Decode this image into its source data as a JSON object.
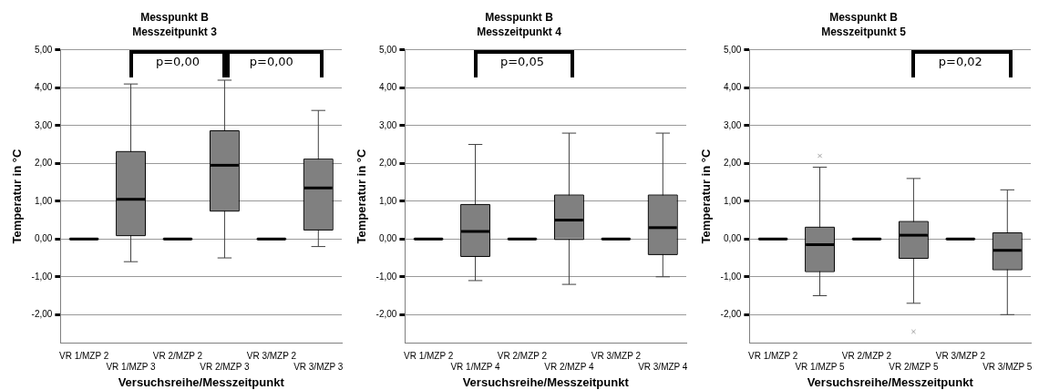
{
  "chart_data": [
    {
      "type": "box",
      "title": "Messpunkt B",
      "subtitle": "Messzeitpunkt 3",
      "xlabel": "Versuchsreihe/Messzeitpunkt",
      "ylabel": "Temperatur in °C",
      "categories": [
        "VR 1/MZP 2",
        "VR 1/MZP 3",
        "VR 2/MZP 2",
        "VR 2/MZP 3",
        "VR 3/MZP 2",
        "VR 3/MZP 3"
      ],
      "colors": [
        "#000000",
        "#808080",
        "#000000",
        "#808080",
        "#000000",
        "#808080"
      ],
      "ylim": [
        -2.75,
        5
      ],
      "yticks": [
        {
          "value": -2,
          "label": "-2,00"
        },
        {
          "value": -1,
          "label": "-1,00"
        },
        {
          "value": 0,
          "label": "0,00"
        },
        {
          "value": 1,
          "label": "1,00"
        },
        {
          "value": 2,
          "label": "2,00"
        },
        {
          "value": 3,
          "label": "3,00"
        },
        {
          "value": 4,
          "label": "4,00"
        },
        {
          "value": 5,
          "label": "5,00"
        }
      ],
      "grid": "y",
      "legend": false,
      "boxes": [
        {
          "low": 0,
          "q1": 0,
          "median": 0,
          "q3": 0,
          "high": 0
        },
        {
          "low": -0.6,
          "q1": 0.1,
          "median": 1.05,
          "q3": 2.3,
          "high": 4.1
        },
        {
          "low": 0,
          "q1": 0,
          "median": 0,
          "q3": 0,
          "high": 0
        },
        {
          "low": -0.5,
          "q1": 0.75,
          "median": 1.95,
          "q3": 2.85,
          "high": 4.2
        },
        {
          "low": 0,
          "q1": 0,
          "median": 0,
          "q3": 0,
          "high": 0
        },
        {
          "low": -0.2,
          "q1": 0.25,
          "median": 1.35,
          "q3": 2.1,
          "high": 3.4
        }
      ],
      "annotations": [
        "p=0,00",
        "p=0,00"
      ]
    },
    {
      "type": "box",
      "title": "Messpunkt B",
      "subtitle": "Messzeitpunkt 4",
      "xlabel": "Versuchsreihe/Messzeitpunkt",
      "ylabel": "Temperatur in °C",
      "categories": [
        "VR 1/MZP 2",
        "VR 1/MZP 4",
        "VR 2/MZP 2",
        "VR 2/MZP 4",
        "VR 3/MZP 2",
        "VR 3/MZP 4"
      ],
      "colors": [
        "#000000",
        "#808080",
        "#000000",
        "#808080",
        "#000000",
        "#808080"
      ],
      "ylim": [
        -2.75,
        5
      ],
      "yticks": [
        {
          "value": -2,
          "label": "-2,00"
        },
        {
          "value": -1,
          "label": "-1,00"
        },
        {
          "value": 0,
          "label": "0,00"
        },
        {
          "value": 1,
          "label": "1,00"
        },
        {
          "value": 2,
          "label": "2,00"
        },
        {
          "value": 3,
          "label": "3,00"
        },
        {
          "value": 4,
          "label": "4,00"
        },
        {
          "value": 5,
          "label": "5,00"
        }
      ],
      "grid": "y",
      "legend": false,
      "boxes": [
        {
          "low": 0,
          "q1": 0,
          "median": 0,
          "q3": 0,
          "high": 0
        },
        {
          "low": -1.1,
          "q1": -0.45,
          "median": 0.2,
          "q3": 0.9,
          "high": 2.5
        },
        {
          "low": 0,
          "q1": 0,
          "median": 0,
          "q3": 0,
          "high": 0
        },
        {
          "low": -1.2,
          "q1": 0,
          "median": 0.5,
          "q3": 1.15,
          "high": 2.8
        },
        {
          "low": 0,
          "q1": 0,
          "median": 0,
          "q3": 0,
          "high": 0
        },
        {
          "low": -1,
          "q1": -0.4,
          "median": 0.3,
          "q3": 1.15,
          "high": 2.8
        }
      ],
      "annotations": [
        "p=0,05"
      ]
    },
    {
      "type": "box",
      "title": "Messpunkt B",
      "subtitle": "Messzeitpunkt 5",
      "xlabel": "Versuchsreihe/Messzeitpunkt",
      "ylabel": "Temperatur in °C",
      "categories": [
        "VR 1/MZP 2",
        "VR 1/MZP 5",
        "VR 2/MZP 2",
        "VR 2/MZP 5",
        "VR 3/MZP 2",
        "VR 3/MZP 5"
      ],
      "colors": [
        "#000000",
        "#808080",
        "#000000",
        "#808080",
        "#000000",
        "#808080"
      ],
      "ylim": [
        -2.75,
        5
      ],
      "yticks": [
        {
          "value": -2,
          "label": "-2,00"
        },
        {
          "value": -1,
          "label": "-1,00"
        },
        {
          "value": 0,
          "label": "0,00"
        },
        {
          "value": 1,
          "label": "1,00"
        },
        {
          "value": 2,
          "label": "2,00"
        },
        {
          "value": 3,
          "label": "3,00"
        },
        {
          "value": 4,
          "label": "4,00"
        },
        {
          "value": 5,
          "label": "5,00"
        }
      ],
      "grid": "y",
      "legend": false,
      "boxes": [
        {
          "low": 0,
          "q1": 0,
          "median": 0,
          "q3": 0,
          "high": 0
        },
        {
          "low": -1.5,
          "q1": -0.85,
          "median": -0.15,
          "q3": 0.3,
          "high": 1.9,
          "outliers": [
            2.2
          ]
        },
        {
          "low": 0,
          "q1": 0,
          "median": 0,
          "q3": 0,
          "high": 0
        },
        {
          "low": -1.7,
          "q1": -0.5,
          "median": 0.1,
          "q3": 0.45,
          "high": 1.6,
          "outliers": [
            -2.45
          ]
        },
        {
          "low": 0,
          "q1": 0,
          "median": 0,
          "q3": 0,
          "high": 0
        },
        {
          "low": -2,
          "q1": -0.8,
          "median": -0.3,
          "q3": 0.15,
          "high": 1.3
        }
      ],
      "annotations": [
        "p=0,02"
      ]
    }
  ]
}
